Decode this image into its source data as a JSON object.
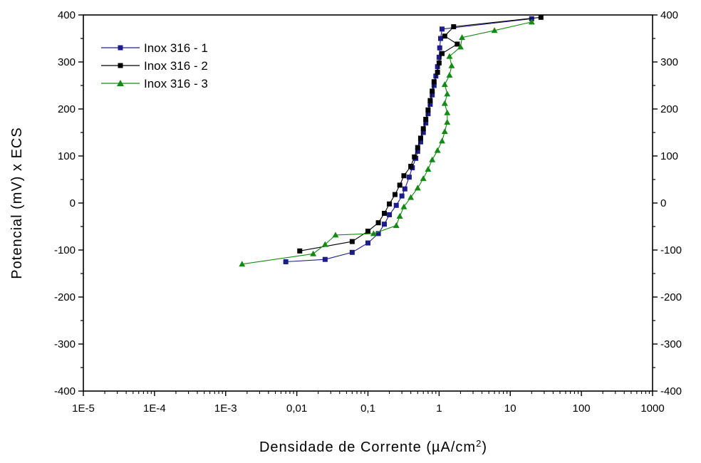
{
  "chart_data": {
    "type": "line",
    "title": "",
    "xlabel": "Densidade de Corrente (µA/cm²)",
    "xlabel_parts": {
      "main": "Densidade de Corrente (",
      "mu": "µ",
      "unit": "A/cm",
      "sup": "2",
      "close": ")"
    },
    "ylabel": "Potencial (mV) x ECS",
    "x_scale": "log",
    "xlim": [
      1e-05,
      1000
    ],
    "ylim": [
      -400,
      400
    ],
    "x_ticks": [
      {
        "value": 1e-05,
        "label": "1E-5"
      },
      {
        "value": 0.0001,
        "label": "1E-4"
      },
      {
        "value": 0.001,
        "label": "1E-3"
      },
      {
        "value": 0.01,
        "label": "0,01"
      },
      {
        "value": 0.1,
        "label": "0,1"
      },
      {
        "value": 1,
        "label": "1"
      },
      {
        "value": 10,
        "label": "10"
      },
      {
        "value": 100,
        "label": "100"
      },
      {
        "value": 1000,
        "label": "1000"
      }
    ],
    "y_ticks": [
      {
        "value": 400,
        "label": "400"
      },
      {
        "value": 300,
        "label": "300"
      },
      {
        "value": 200,
        "label": "200"
      },
      {
        "value": 100,
        "label": "100"
      },
      {
        "value": 0,
        "label": "0"
      },
      {
        "value": -100,
        "label": "-100"
      },
      {
        "value": -200,
        "label": "-200"
      },
      {
        "value": -300,
        "label": "-300"
      },
      {
        "value": -400,
        "label": "-400"
      }
    ],
    "grid": false,
    "legend_position": "top-left",
    "series": [
      {
        "name": "Inox 316 - 1",
        "color": "#1c1c8c",
        "marker": "square",
        "points": [
          [
            0.007,
            -125
          ],
          [
            0.025,
            -120
          ],
          [
            0.06,
            -105
          ],
          [
            0.1,
            -85
          ],
          [
            0.14,
            -65
          ],
          [
            0.17,
            -45
          ],
          [
            0.2,
            -25
          ],
          [
            0.25,
            -5
          ],
          [
            0.3,
            15
          ],
          [
            0.33,
            30
          ],
          [
            0.38,
            55
          ],
          [
            0.42,
            75
          ],
          [
            0.47,
            95
          ],
          [
            0.5,
            110
          ],
          [
            0.55,
            130
          ],
          [
            0.6,
            150
          ],
          [
            0.65,
            170
          ],
          [
            0.7,
            190
          ],
          [
            0.75,
            210
          ],
          [
            0.8,
            230
          ],
          [
            0.85,
            250
          ],
          [
            0.9,
            270
          ],
          [
            0.95,
            290
          ],
          [
            1.0,
            310
          ],
          [
            1.02,
            330
          ],
          [
            1.05,
            350
          ],
          [
            1.1,
            370
          ],
          [
            20,
            392
          ]
        ]
      },
      {
        "name": "Inox 316 - 2",
        "color": "#000000",
        "marker": "square",
        "points": [
          [
            0.011,
            -102
          ],
          [
            0.06,
            -82
          ],
          [
            0.1,
            -60
          ],
          [
            0.14,
            -42
          ],
          [
            0.17,
            -22
          ],
          [
            0.2,
            -2
          ],
          [
            0.24,
            18
          ],
          [
            0.28,
            38
          ],
          [
            0.32,
            58
          ],
          [
            0.4,
            78
          ],
          [
            0.45,
            98
          ],
          [
            0.5,
            118
          ],
          [
            0.55,
            138
          ],
          [
            0.6,
            158
          ],
          [
            0.65,
            178
          ],
          [
            0.7,
            198
          ],
          [
            0.75,
            218
          ],
          [
            0.8,
            238
          ],
          [
            0.85,
            258
          ],
          [
            0.95,
            278
          ],
          [
            1.0,
            298
          ],
          [
            1.1,
            318
          ],
          [
            1.8,
            338
          ],
          [
            1.2,
            355
          ],
          [
            1.6,
            375
          ],
          [
            27,
            395
          ]
        ]
      },
      {
        "name": "Inox 316 - 3",
        "color": "#138a13",
        "marker": "triangle",
        "points": [
          [
            0.0017,
            -130
          ],
          [
            0.017,
            -108
          ],
          [
            0.025,
            -88
          ],
          [
            0.035,
            -68
          ],
          [
            0.12,
            -65
          ],
          [
            0.25,
            -48
          ],
          [
            0.28,
            -28
          ],
          [
            0.32,
            -8
          ],
          [
            0.4,
            12
          ],
          [
            0.5,
            32
          ],
          [
            0.6,
            52
          ],
          [
            0.7,
            72
          ],
          [
            0.8,
            92
          ],
          [
            0.95,
            112
          ],
          [
            1.1,
            132
          ],
          [
            1.2,
            152
          ],
          [
            1.3,
            172
          ],
          [
            1.3,
            192
          ],
          [
            1.2,
            212
          ],
          [
            1.3,
            232
          ],
          [
            1.2,
            252
          ],
          [
            1.4,
            272
          ],
          [
            1.5,
            292
          ],
          [
            1.4,
            312
          ],
          [
            2.0,
            332
          ],
          [
            2.1,
            352
          ],
          [
            6,
            367
          ],
          [
            20,
            385
          ]
        ]
      }
    ]
  }
}
